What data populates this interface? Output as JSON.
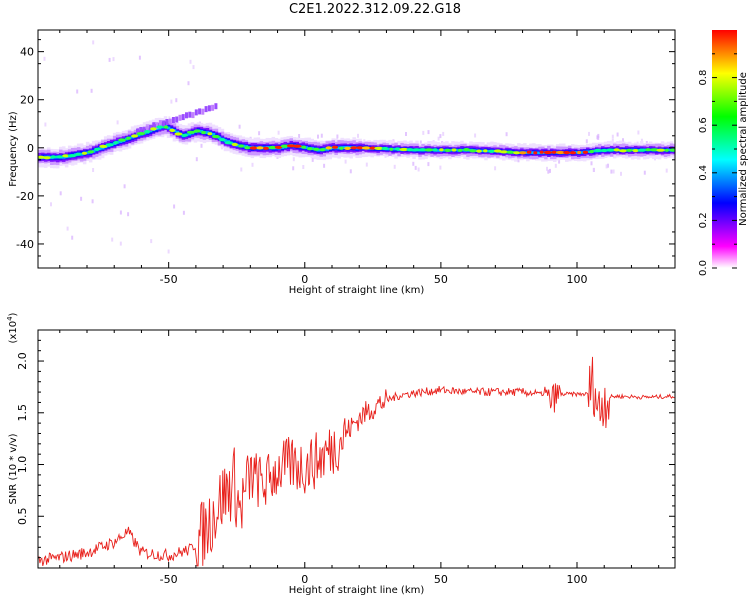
{
  "title": "C2E1.2022.312.09.22.G18",
  "chart_data": [
    {
      "type": "heatmap",
      "xlabel": "Height of straight line (km)",
      "ylabel": "Frequency (Hz)",
      "xlim": [
        -98,
        136
      ],
      "ylim": [
        -50,
        49
      ],
      "xticks": [
        -50,
        0,
        50,
        100
      ],
      "yticks": [
        -40,
        -20,
        0,
        20,
        40
      ],
      "colorbar": {
        "label": "Normalized spectral amplitude",
        "range": [
          0,
          1
        ],
        "ticks": [
          0.0,
          0.2,
          0.4,
          0.6,
          0.8
        ],
        "colors": [
          "#ffffff",
          "#ff00ff",
          "#8000ff",
          "#0000ff",
          "#0080ff",
          "#00ffff",
          "#00ff80",
          "#00ff00",
          "#80ff00",
          "#ffff00",
          "#ff8000",
          "#ff0000"
        ]
      },
      "ridge": {
        "x": [
          -98,
          -90,
          -80,
          -70,
          -60,
          -52,
          -45,
          -40,
          -35,
          -30,
          -25,
          -20,
          -15,
          -10,
          -5,
          0,
          5,
          10,
          20,
          40,
          60,
          80,
          90,
          100,
          110,
          136
        ],
        "freq": [
          -4,
          -4,
          -2,
          2,
          6,
          9,
          5,
          7,
          6,
          3,
          1,
          0,
          0,
          0,
          1,
          0,
          -1,
          0,
          0,
          -1,
          -1,
          -2,
          -2,
          -2,
          -1,
          -1
        ]
      }
    },
    {
      "type": "line",
      "xlabel": "Height of straight line (km)",
      "ylabel": "SNR (10 * v/v)",
      "exponent_label": "(x10",
      "exponent_power": "4",
      "exponent_close": ")",
      "xlim": [
        -98,
        136
      ],
      "ylim": [
        0,
        2.3
      ],
      "xticks": [
        -50,
        0,
        50,
        100
      ],
      "yticks": [
        0.5,
        1.0,
        1.5,
        2.0
      ],
      "ytick_labels": [
        "0.5",
        "1.0",
        "1.5",
        "2.0"
      ],
      "series": [
        {
          "color": "#e8211c",
          "x": [
            -98,
            -90,
            -80,
            -70,
            -65,
            -60,
            -50,
            -42,
            -38,
            -35,
            -32,
            -30,
            -28,
            -26,
            -24,
            -22,
            -20,
            -15,
            -10,
            -5,
            0,
            5,
            10,
            15,
            20,
            25,
            30,
            35,
            40,
            50,
            60,
            70,
            80,
            88,
            90,
            92,
            95,
            100,
            104,
            106,
            108,
            110,
            115,
            125,
            136
          ],
          "y": [
            0.07,
            0.1,
            0.15,
            0.25,
            0.35,
            0.15,
            0.12,
            0.18,
            0.3,
            0.45,
            0.6,
            0.7,
            0.75,
            0.85,
            0.55,
            0.7,
            0.9,
            0.8,
            0.95,
            1.0,
            0.98,
            1.05,
            1.15,
            1.3,
            1.45,
            1.55,
            1.62,
            1.67,
            1.69,
            1.72,
            1.7,
            1.7,
            1.7,
            1.68,
            1.6,
            1.66,
            1.68,
            1.68,
            1.68,
            1.8,
            1.5,
            1.65,
            1.66,
            1.65,
            1.66
          ]
        }
      ]
    }
  ]
}
